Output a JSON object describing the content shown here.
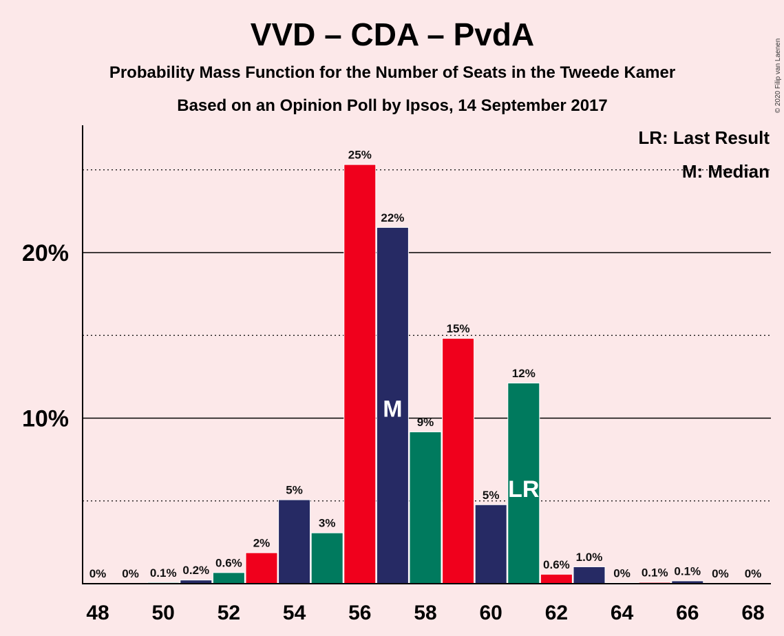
{
  "title": "VVD – CDA – PvdA",
  "subtitle1": "Probability Mass Function for the Number of Seats in the Tweede Kamer",
  "subtitle2": "Based on an Opinion Poll by Ipsos, 14 September 2017",
  "copyright": "© 2020 Filip van Laenen",
  "legend": {
    "last_result": "LR: Last Result",
    "median": "M: Median"
  },
  "colors": {
    "background": "#fce8e9",
    "red": "#f0001c",
    "navy": "#262a64",
    "green": "#007a5e"
  },
  "chart_data": {
    "type": "bar",
    "x": [
      48,
      49,
      50,
      51,
      52,
      53,
      54,
      55,
      56,
      57,
      58,
      59,
      60,
      61,
      62,
      63,
      64,
      65,
      66,
      67,
      68
    ],
    "values": [
      0,
      0,
      0.1,
      0.2,
      0.6,
      2,
      5,
      3,
      25,
      22,
      9,
      15,
      5,
      12,
      0.6,
      1.0,
      0,
      0.1,
      0.1,
      0,
      0
    ],
    "plot_values": [
      0,
      0,
      0.05,
      0.2,
      0.65,
      1.85,
      5.05,
      3.05,
      25.3,
      21.5,
      9.15,
      14.8,
      4.75,
      12.1,
      0.55,
      1.0,
      0.03,
      0.06,
      0.15,
      0,
      0
    ],
    "labels": [
      "0%",
      "0%",
      "0.1%",
      "0.2%",
      "0.6%",
      "2%",
      "5%",
      "3%",
      "25%",
      "22%",
      "9%",
      "15%",
      "5%",
      "12%",
      "0.6%",
      "1.0%",
      "0%",
      "0.1%",
      "0.1%",
      "0%",
      "0%"
    ],
    "bar_colors": [
      "red",
      "navy",
      "green",
      "navy",
      "green",
      "red",
      "navy",
      "green",
      "red",
      "navy",
      "green",
      "red",
      "navy",
      "green",
      "red",
      "navy",
      "green",
      "red",
      "navy",
      "green",
      "red"
    ],
    "x_ticks": [
      "48",
      "50",
      "52",
      "54",
      "56",
      "58",
      "60",
      "62",
      "64",
      "66",
      "68"
    ],
    "y_ticks": [
      "10%",
      "20%"
    ],
    "ylim": [
      0,
      26.5
    ],
    "median_seat": 57,
    "median_marker": "M",
    "last_result_seat": 61,
    "last_result_marker": "LR",
    "grid": true
  }
}
